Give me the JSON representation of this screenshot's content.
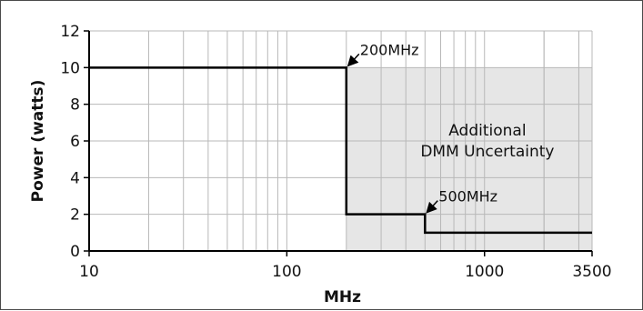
{
  "chart_data": {
    "type": "line",
    "xlabel": "MHz",
    "ylabel": "Power (watts)",
    "x_scale": "log",
    "xlim": [
      10,
      3500
    ],
    "ylim": [
      0,
      12
    ],
    "x_tick_labels": [
      "10",
      "100",
      "1000",
      "3500"
    ],
    "x_tick_values": [
      10,
      100,
      1000,
      3500
    ],
    "y_ticks": [
      0,
      2,
      4,
      6,
      8,
      10,
      12
    ],
    "grid": true,
    "series": [
      {
        "x": [
          10,
          200,
          200,
          500,
          500,
          3500
        ],
        "y": [
          10,
          10,
          2,
          2,
          1,
          1
        ],
        "color": "#000000"
      }
    ],
    "shaded_region": {
      "x": [
        200,
        3500
      ],
      "y": [
        0,
        10
      ],
      "color": "#e6e6e6",
      "label_line1": "Additional",
      "label_line2": "DMM Uncertainty"
    },
    "annotations": [
      {
        "text": "200MHz",
        "x": 200,
        "y": 10
      },
      {
        "text": "500MHz",
        "x": 500,
        "y": 2
      }
    ]
  }
}
